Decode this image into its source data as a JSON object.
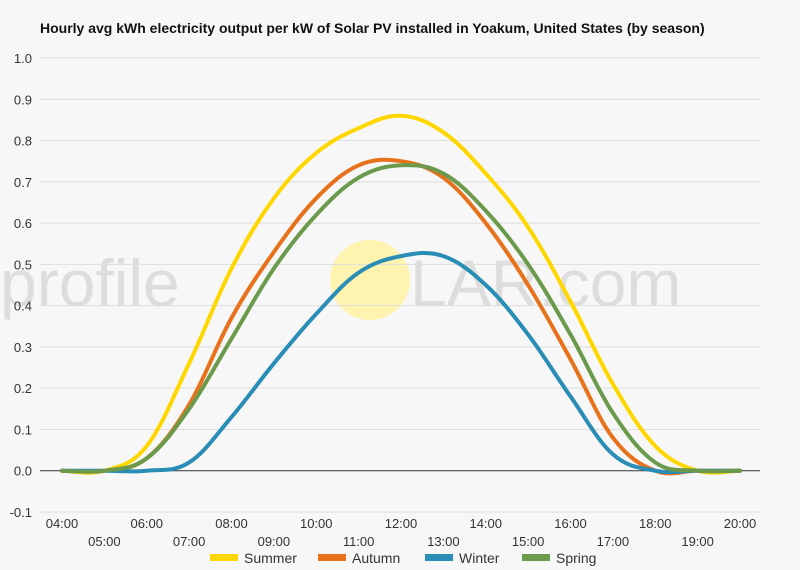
{
  "chart_data": {
    "type": "line",
    "title": "Hourly avg kWh electricity output per kW of Solar PV installed in Yoakum, United States (by season)",
    "xlabel": "",
    "ylabel": "",
    "x": [
      "04:00",
      "05:00",
      "06:00",
      "07:00",
      "08:00",
      "09:00",
      "10:00",
      "11:00",
      "12:00",
      "13:00",
      "14:00",
      "15:00",
      "16:00",
      "17:00",
      "18:00",
      "19:00",
      "20:00"
    ],
    "ylim": [
      -0.1,
      1.0
    ],
    "yticks": [
      "-0.1",
      "0.0",
      "0.1",
      "0.2",
      "0.3",
      "0.4",
      "0.5",
      "0.6",
      "0.7",
      "0.8",
      "0.9",
      "1.0"
    ],
    "grid": true,
    "legend_position": "bottom",
    "series": [
      {
        "name": "Summer",
        "color": "#ffd700",
        "values": [
          0.0,
          0.0,
          0.06,
          0.26,
          0.49,
          0.66,
          0.77,
          0.83,
          0.86,
          0.82,
          0.72,
          0.59,
          0.41,
          0.21,
          0.06,
          0.0,
          0.0
        ]
      },
      {
        "name": "Autumn",
        "color": "#e8711c",
        "values": [
          0.0,
          0.0,
          0.03,
          0.16,
          0.37,
          0.53,
          0.66,
          0.74,
          0.75,
          0.71,
          0.6,
          0.45,
          0.27,
          0.08,
          0.0,
          0.0,
          0.0
        ]
      },
      {
        "name": "Winter",
        "color": "#2a8db5",
        "values": [
          0.0,
          0.0,
          0.0,
          0.02,
          0.13,
          0.26,
          0.38,
          0.48,
          0.52,
          0.52,
          0.45,
          0.33,
          0.18,
          0.04,
          0.0,
          0.0,
          0.0
        ]
      },
      {
        "name": "Spring",
        "color": "#6b9a4c",
        "values": [
          0.0,
          0.0,
          0.03,
          0.15,
          0.32,
          0.49,
          0.62,
          0.71,
          0.74,
          0.72,
          0.63,
          0.5,
          0.33,
          0.14,
          0.02,
          0.0,
          0.0
        ]
      }
    ]
  },
  "watermark": {
    "text_left": "profile",
    "text_right": "LAR.com",
    "sun_color": "#fff3b0"
  }
}
